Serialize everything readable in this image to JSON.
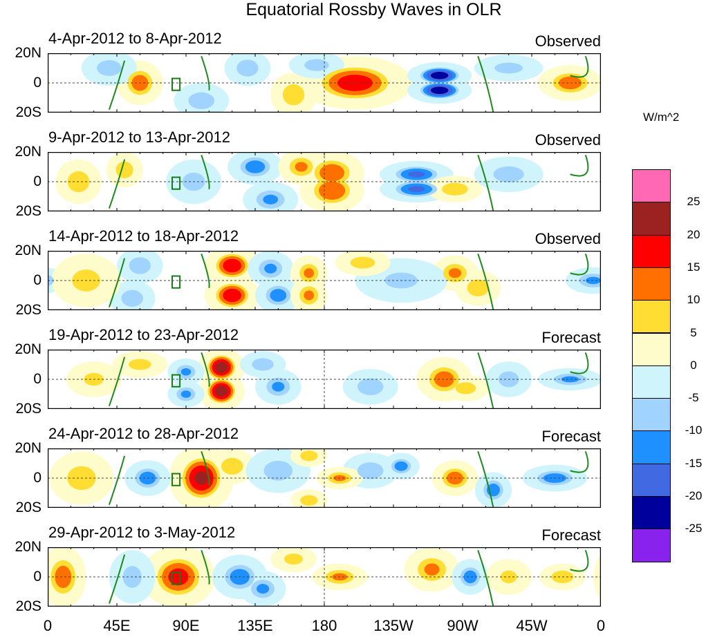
{
  "title": "Equatorial Rossby Waves in OLR",
  "units": "W/m^2",
  "y_labels": [
    "20N",
    "0",
    "20S"
  ],
  "x_labels": [
    "0",
    "45E",
    "90E",
    "135E",
    "180",
    "135W",
    "90W",
    "45W",
    "0"
  ],
  "colorbar": {
    "labels": [
      "25",
      "20",
      "15",
      "10",
      "5",
      "0",
      "-5",
      "-10",
      "-15",
      "-20",
      "-25"
    ],
    "colors": [
      "#ff69b4",
      "#9c2222",
      "#ff0000",
      "#ff7000",
      "#ffdd33",
      "#fffccc",
      "#d0f4fc",
      "#a0d4ff",
      "#1e90ff",
      "#4169e1",
      "#00009c",
      "#8a22ee"
    ]
  },
  "chart_data": {
    "type": "heatmap",
    "title": "Equatorial Rossby Waves in OLR",
    "xlim": [
      0,
      360
    ],
    "ylim": [
      -20,
      20
    ],
    "levels": [
      -25,
      -20,
      -15,
      -10,
      -5,
      0,
      5,
      10,
      15,
      20,
      25
    ],
    "panels": [
      {
        "period": "4-Apr-2012 to 8-Apr-2012",
        "type": "Observed",
        "centers": [
          [
            60,
            0,
            12,
            10,
            10
          ],
          [
            200,
            0,
            17,
            25,
            12
          ],
          [
            255,
            5,
            -22,
            14,
            6
          ],
          [
            255,
            -5,
            -22,
            14,
            6
          ],
          [
            340,
            0,
            12,
            14,
            8
          ],
          [
            100,
            -12,
            -8,
            12,
            8
          ],
          [
            40,
            10,
            -7,
            12,
            8
          ],
          [
            130,
            10,
            -8,
            10,
            8
          ],
          [
            160,
            -8,
            8,
            10,
            10
          ],
          [
            175,
            12,
            -7,
            12,
            6
          ],
          [
            300,
            10,
            -6,
            15,
            6
          ]
        ]
      },
      {
        "period": "9-Apr-2012 to 13-Apr-2012",
        "type": "Observed",
        "centers": [
          [
            185,
            6,
            13,
            14,
            10
          ],
          [
            185,
            -6,
            14,
            14,
            10
          ],
          [
            240,
            5,
            -15,
            16,
            6
          ],
          [
            240,
            -5,
            -15,
            16,
            6
          ],
          [
            135,
            10,
            -12,
            12,
            8
          ],
          [
            145,
            -12,
            -10,
            12,
            8
          ],
          [
            165,
            10,
            10,
            10,
            8
          ],
          [
            265,
            -5,
            8,
            12,
            6
          ],
          [
            20,
            0,
            8,
            10,
            10
          ],
          [
            50,
            8,
            8,
            8,
            8
          ],
          [
            300,
            5,
            -7,
            15,
            8
          ],
          [
            95,
            0,
            -6,
            12,
            10
          ]
        ]
      },
      {
        "period": "14-Apr-2012 to 18-Apr-2012",
        "type": "Observed",
        "centers": [
          [
            120,
            10,
            18,
            12,
            9
          ],
          [
            120,
            -10,
            18,
            12,
            9
          ],
          [
            145,
            8,
            -10,
            10,
            8
          ],
          [
            150,
            -10,
            -12,
            10,
            8
          ],
          [
            170,
            5,
            10,
            8,
            8
          ],
          [
            170,
            -10,
            10,
            8,
            8
          ],
          [
            265,
            5,
            10,
            10,
            8
          ],
          [
            280,
            -5,
            8,
            10,
            8
          ],
          [
            355,
            0,
            -10,
            12,
            6
          ],
          [
            230,
            0,
            -5,
            20,
            10
          ],
          [
            60,
            10,
            -8,
            10,
            8
          ],
          [
            55,
            -12,
            -8,
            10,
            8
          ],
          [
            25,
            0,
            6,
            15,
            12
          ],
          [
            205,
            12,
            7,
            12,
            6
          ]
        ]
      },
      {
        "period": "19-Apr-2012 to 23-Apr-2012",
        "type": "Forecast",
        "centers": [
          [
            113,
            8,
            22,
            10,
            9
          ],
          [
            113,
            -8,
            22,
            10,
            9
          ],
          [
            90,
            5,
            -10,
            8,
            6
          ],
          [
            90,
            -10,
            -10,
            8,
            6
          ],
          [
            150,
            -5,
            -10,
            10,
            8
          ],
          [
            140,
            10,
            -8,
            10,
            6
          ],
          [
            210,
            -5,
            -8,
            12,
            8
          ],
          [
            258,
            0,
            12,
            12,
            10
          ],
          [
            272,
            -6,
            7,
            10,
            6
          ],
          [
            300,
            0,
            -7,
            10,
            8
          ],
          [
            340,
            0,
            -10,
            14,
            5
          ],
          [
            60,
            10,
            6,
            12,
            6
          ],
          [
            30,
            0,
            5,
            12,
            8
          ]
        ]
      },
      {
        "period": "24-Apr-2012 to 28-Apr-2012",
        "type": "Forecast",
        "centers": [
          [
            100,
            0,
            20,
            14,
            15
          ],
          [
            120,
            8,
            8,
            10,
            8
          ],
          [
            65,
            0,
            -12,
            10,
            8
          ],
          [
            150,
            5,
            -7,
            14,
            10
          ],
          [
            210,
            5,
            -8,
            12,
            8
          ],
          [
            230,
            8,
            -12,
            8,
            6
          ],
          [
            265,
            0,
            12,
            10,
            8
          ],
          [
            290,
            -8,
            -12,
            8,
            8
          ],
          [
            330,
            0,
            -12,
            14,
            6
          ],
          [
            190,
            0,
            10,
            10,
            5
          ],
          [
            22,
            0,
            7,
            14,
            12
          ],
          [
            170,
            -15,
            8,
            8,
            5
          ],
          [
            170,
            15,
            8,
            8,
            5
          ]
        ]
      },
      {
        "period": "29-Apr-2012 to 3-May-2012",
        "type": "Forecast",
        "centers": [
          [
            85,
            0,
            16,
            16,
            14
          ],
          [
            10,
            0,
            12,
            10,
            14
          ],
          [
            125,
            0,
            -12,
            12,
            10
          ],
          [
            140,
            -8,
            -10,
            10,
            8
          ],
          [
            190,
            0,
            10,
            12,
            6
          ],
          [
            250,
            5,
            10,
            12,
            10
          ],
          [
            275,
            0,
            -12,
            8,
            8
          ],
          [
            300,
            0,
            5,
            10,
            8
          ],
          [
            335,
            0,
            8,
            10,
            6
          ],
          [
            55,
            0,
            -6,
            10,
            12
          ],
          [
            160,
            12,
            6,
            10,
            6
          ]
        ]
      }
    ]
  }
}
